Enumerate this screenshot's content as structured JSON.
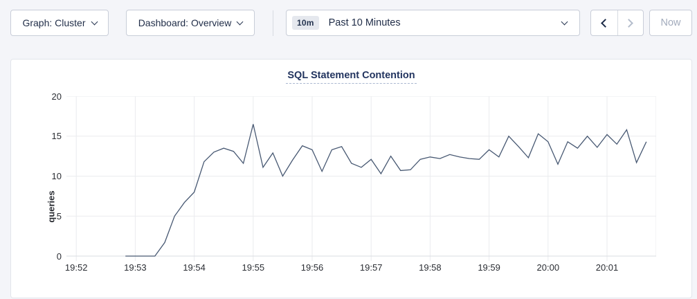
{
  "page": {
    "background": "#f4f5f9"
  },
  "toolbar": {
    "graph_dropdown": {
      "label": "Graph: Cluster"
    },
    "dashboard_dropdown": {
      "label": "Dashboard: Overview"
    },
    "time_selector": {
      "badge": "10m",
      "label": "Past 10 Minutes"
    },
    "prev_button": {
      "icon": "chevron-left",
      "enabled": true
    },
    "next_button": {
      "icon": "chevron-right",
      "enabled": false
    },
    "now_button": {
      "label": "Now",
      "enabled": false
    }
  },
  "chart_data": {
    "type": "line",
    "title": "SQL Statement Contention",
    "xlabel": "",
    "ylabel": "queries",
    "ylim": [
      0,
      20
    ],
    "yticks": [
      0,
      5,
      10,
      15,
      20
    ],
    "grid": true,
    "legend": "none",
    "x_domain": [
      "19:51:50",
      "20:01:50"
    ],
    "x_ticks": [
      {
        "label": "19:52",
        "time": "19:52:00"
      },
      {
        "label": "19:53",
        "time": "19:53:00"
      },
      {
        "label": "19:54",
        "time": "19:54:00"
      },
      {
        "label": "19:55",
        "time": "19:55:00"
      },
      {
        "label": "19:56",
        "time": "19:56:00"
      },
      {
        "label": "19:57",
        "time": "19:57:00"
      },
      {
        "label": "19:58",
        "time": "19:58:00"
      },
      {
        "label": "19:59",
        "time": "19:59:00"
      },
      {
        "label": "20:00",
        "time": "20:00:00"
      },
      {
        "label": "20:01",
        "time": "20:01:00"
      }
    ],
    "colors": {
      "line": "#475872",
      "grid": "#eaebee",
      "axis": "#d9dce2",
      "title": "#22345f",
      "tick_text": "#2a2d33"
    },
    "series": [
      {
        "name": "queries",
        "points": [
          [
            "19:52:50",
            0
          ],
          [
            "19:53:00",
            0
          ],
          [
            "19:53:10",
            0
          ],
          [
            "19:53:20",
            0
          ],
          [
            "19:53:30",
            1.7
          ],
          [
            "19:53:40",
            5.0
          ],
          [
            "19:53:50",
            6.7
          ],
          [
            "19:54:00",
            8.0
          ],
          [
            "19:54:10",
            11.8
          ],
          [
            "19:54:20",
            13.0
          ],
          [
            "19:54:30",
            13.5
          ],
          [
            "19:54:40",
            13.1
          ],
          [
            "19:54:50",
            11.6
          ],
          [
            "19:55:00",
            16.5
          ],
          [
            "19:55:10",
            11.1
          ],
          [
            "19:55:20",
            12.9
          ],
          [
            "19:55:30",
            10.0
          ],
          [
            "19:55:40",
            12.0
          ],
          [
            "19:55:50",
            13.8
          ],
          [
            "19:56:00",
            13.3
          ],
          [
            "19:56:10",
            10.6
          ],
          [
            "19:56:20",
            13.3
          ],
          [
            "19:56:30",
            13.7
          ],
          [
            "19:56:40",
            11.6
          ],
          [
            "19:56:50",
            11.1
          ],
          [
            "19:57:00",
            12.1
          ],
          [
            "19:57:10",
            10.3
          ],
          [
            "19:57:20",
            12.5
          ],
          [
            "19:57:30",
            10.7
          ],
          [
            "19:57:40",
            10.8
          ],
          [
            "19:57:50",
            12.1
          ],
          [
            "19:58:00",
            12.4
          ],
          [
            "19:58:10",
            12.2
          ],
          [
            "19:58:20",
            12.7
          ],
          [
            "19:58:30",
            12.4
          ],
          [
            "19:58:40",
            12.2
          ],
          [
            "19:58:50",
            12.1
          ],
          [
            "19:59:00",
            13.3
          ],
          [
            "19:59:10",
            12.4
          ],
          [
            "19:59:20",
            15.0
          ],
          [
            "19:59:30",
            13.7
          ],
          [
            "19:59:40",
            12.3
          ],
          [
            "19:59:50",
            15.3
          ],
          [
            "20:00:00",
            14.3
          ],
          [
            "20:00:10",
            11.5
          ],
          [
            "20:00:20",
            14.3
          ],
          [
            "20:00:30",
            13.5
          ],
          [
            "20:00:40",
            15.0
          ],
          [
            "20:00:50",
            13.6
          ],
          [
            "20:01:00",
            15.2
          ],
          [
            "20:01:10",
            14.0
          ],
          [
            "20:01:20",
            15.8
          ],
          [
            "20:01:30",
            11.7
          ],
          [
            "20:01:40",
            14.3
          ]
        ]
      }
    ]
  }
}
